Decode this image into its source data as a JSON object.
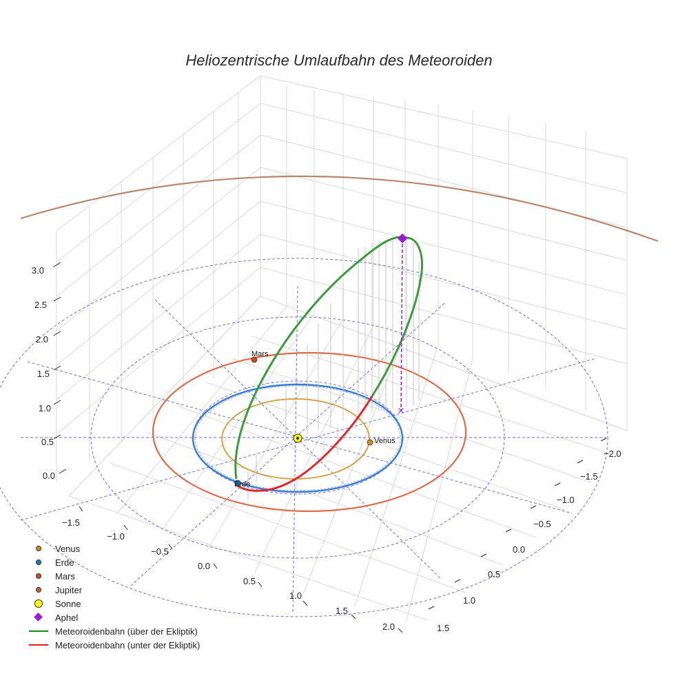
{
  "chart_data": {
    "type": "scatter3d",
    "title": "Heliozentrische Umlaufbahn des Meteoroiden",
    "axes": {
      "x_ticks": [
        "−1.5",
        "−1.0",
        "−0.5",
        "0.0",
        "0.5",
        "1.0",
        "1.5",
        "2.0"
      ],
      "y_ticks": [
        "−2.0",
        "−1.5",
        "−1.0",
        "−0.5",
        "0.0",
        "0.5",
        "1.0",
        "1.5"
      ],
      "z_ticks": [
        "0.0",
        "0.5",
        "1.0",
        "1.5",
        "2.0",
        "2.5",
        "3.0"
      ]
    },
    "bodies": [
      {
        "name": "Venus",
        "label": "Venus",
        "color": "#d08c17",
        "orbit_color": "#d4a24a",
        "orbit_radius_au": 0.72
      },
      {
        "name": "Erde",
        "label": "Erde",
        "color": "#1f77b4",
        "orbit_color": "#3a7bd5",
        "orbit_radius_au": 1.0
      },
      {
        "name": "Mars",
        "label": "Mars",
        "color": "#d2461b",
        "orbit_color": "#dd6a48",
        "orbit_radius_au": 1.52
      },
      {
        "name": "Jupiter",
        "label": "",
        "color": "#b06a3b",
        "orbit_color": "#b8866a",
        "orbit_radius_au": 5.2
      }
    ],
    "sun": {
      "name": "Sonne",
      "color": "#ffff00"
    },
    "aphel": {
      "name": "Aphel",
      "color": "#9b19d8",
      "height_au": 3.3
    },
    "orbit_segments": [
      {
        "name": "Meteoroidenbahn (über der Ekliptik)",
        "color": "#2ca02c"
      },
      {
        "name": "Meteoroidenbahn (unter der Ekliptik)",
        "color": "#e31a1c"
      }
    ],
    "ecliptic_grid_rings_au": [
      1,
      2,
      3
    ]
  },
  "legend": {
    "items": [
      {
        "label": "Venus",
        "kind": "dot",
        "color": "#d08c17"
      },
      {
        "label": "Erde",
        "kind": "dot",
        "color": "#1f77b4"
      },
      {
        "label": "Mars",
        "kind": "dot",
        "color": "#d2461b"
      },
      {
        "label": "Jupiter",
        "kind": "dot",
        "color": "#b06a3b"
      },
      {
        "label": "Sonne",
        "kind": "big",
        "color": "#ffff00"
      },
      {
        "label": "Aphel",
        "kind": "diamond",
        "color": "#9b19d8"
      },
      {
        "label": "Meteoroidenbahn (über der Ekliptik)",
        "kind": "line",
        "color": "#1a8c1a"
      },
      {
        "label": "Meteoroidenbahn (unter der Ekliptik)",
        "kind": "line",
        "color": "#e31a1c"
      }
    ]
  }
}
